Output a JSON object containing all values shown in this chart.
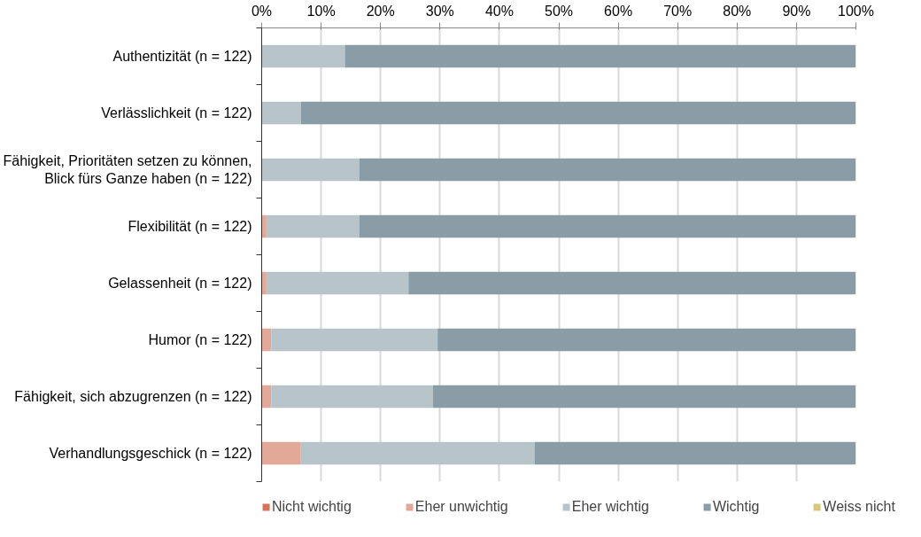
{
  "chart_data": {
    "type": "bar",
    "orientation": "horizontal",
    "stacked": true,
    "categories": [
      "Authentizität (n = 122)",
      "Verlässlichkeit (n = 122)",
      "Fähigkeit, Prioritäten setzen zu können, Blick fürs Ganze haben (n = 122)",
      "Flexibilität (n = 122)",
      "Gelassenheit (n = 122)",
      "Humor (n = 122)",
      "Fähigkeit, sich abzugrenzen (n = 122)",
      "Verhandlungsgeschick (n = 122)"
    ],
    "series": [
      {
        "name": "Nicht wichtig",
        "color": "#d9735a",
        "values": [
          0,
          0,
          0,
          0,
          0,
          0,
          0,
          0
        ]
      },
      {
        "name": "Eher unwichtig",
        "color": "#e2a898",
        "values": [
          0,
          0,
          0,
          0.8,
          0.8,
          1.6,
          1.6,
          6.6
        ]
      },
      {
        "name": "Eher wichtig",
        "color": "#b7c4ca",
        "values": [
          14.0,
          6.6,
          16.4,
          15.6,
          23.9,
          28.0,
          27.2,
          39.3
        ]
      },
      {
        "name": "Wichtig",
        "color": "#8a9da7",
        "values": [
          86.0,
          93.4,
          83.6,
          83.6,
          75.3,
          70.4,
          71.2,
          54.1
        ]
      },
      {
        "name": "Weiss nicht",
        "color": "#d8c97a",
        "values": [
          0,
          0,
          0,
          0,
          0,
          0,
          0,
          0
        ]
      }
    ],
    "xlim": [
      0,
      100
    ],
    "xticks": [
      {
        "value": 0,
        "label": "0%"
      },
      {
        "value": 10,
        "label": "10%"
      },
      {
        "value": 20,
        "label": "20%"
      },
      {
        "value": 30,
        "label": "30%"
      },
      {
        "value": 40,
        "label": "40%"
      },
      {
        "value": 50,
        "label": "50%"
      },
      {
        "value": 60,
        "label": "60%"
      },
      {
        "value": 70,
        "label": "70%"
      },
      {
        "value": 80,
        "label": "80%"
      },
      {
        "value": 90,
        "label": "90%"
      },
      {
        "value": 100,
        "label": "100%"
      }
    ],
    "grid": "x",
    "legend": "bottom"
  }
}
